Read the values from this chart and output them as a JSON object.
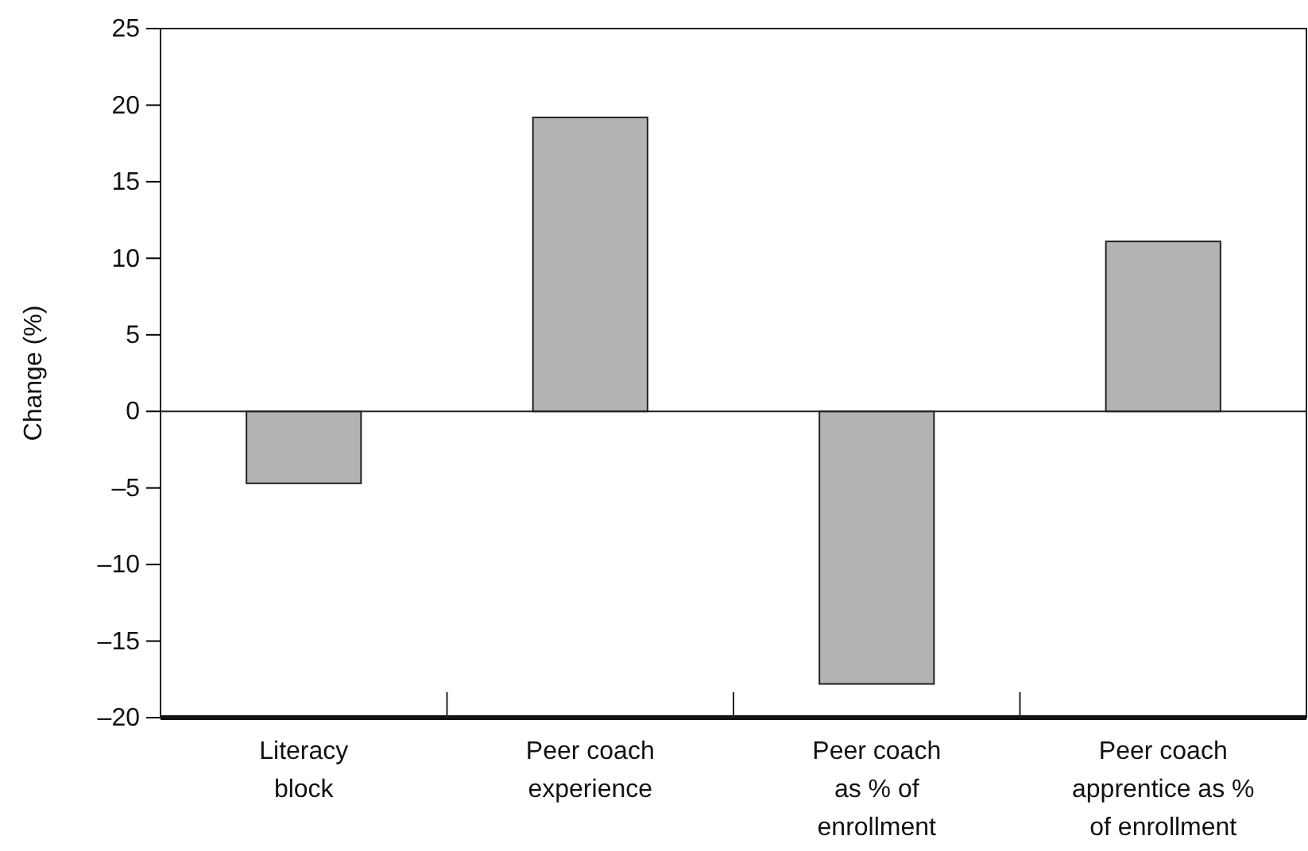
{
  "chart_data": {
    "type": "bar",
    "categories": [
      "Literacy\nblock",
      "Peer coach\nexperience",
      "Peer coach\nas % of\nenrollment",
      "Peer coach\napprentice as %\nof enrollment"
    ],
    "values": [
      -4.7,
      19.2,
      -17.8,
      11.1
    ],
    "color": "#b3b3b3",
    "ylabel": "Change (%)",
    "ylim": [
      -20,
      25
    ],
    "yticks": [
      {
        "value": -20,
        "label": "–20"
      },
      {
        "value": -15,
        "label": "–15"
      },
      {
        "value": -10,
        "label": "–10"
      },
      {
        "value": -5,
        "label": "–5"
      },
      0,
      5,
      10,
      15,
      20,
      25
    ],
    "ref_lines": [
      {
        "axis": "y",
        "value": 0,
        "label": null
      }
    ],
    "grid": false
  }
}
